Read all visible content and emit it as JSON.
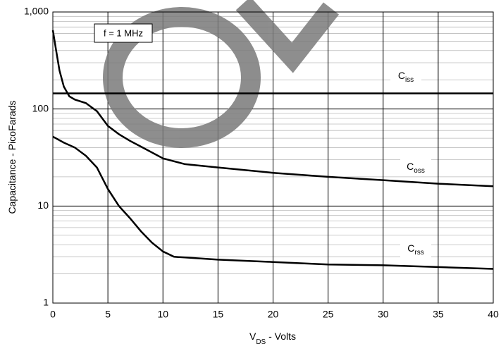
{
  "chart_data": {
    "type": "line",
    "x_label": "VDS - Volts",
    "y_label": "Capacitance - PicoFarads",
    "annotation": "f = 1 MHz",
    "xlim": [
      0,
      40
    ],
    "xticks": [
      0,
      5,
      10,
      15,
      20,
      25,
      30,
      35,
      40
    ],
    "ylim": [
      1,
      1000
    ],
    "yticks": [
      1,
      10,
      100,
      {
        "value": 1000,
        "label": "1,000"
      }
    ],
    "log_y": true,
    "grid": true,
    "minor_grid": true,
    "series": [
      {
        "name": "Ciss",
        "color": "#000000",
        "x": [
          0,
          40
        ],
        "values": [
          145,
          145
        ]
      },
      {
        "name": "Coss",
        "color": "#000000",
        "x": [
          0,
          0.3,
          0.6,
          1,
          1.5,
          2,
          3,
          4,
          5,
          6,
          7,
          8,
          10,
          12,
          15,
          20,
          25,
          30,
          35,
          40
        ],
        "values": [
          650,
          400,
          250,
          170,
          135,
          125,
          115,
          95,
          67,
          55,
          47,
          41,
          31,
          27,
          25,
          22,
          20,
          18.5,
          17,
          16
        ]
      },
      {
        "name": "Crss",
        "color": "#000000",
        "x": [
          0,
          1,
          2,
          3,
          4,
          5,
          6,
          7,
          8,
          9,
          10,
          11,
          12,
          15,
          20,
          25,
          30,
          35,
          40
        ],
        "values": [
          52,
          45,
          40,
          33,
          25,
          15,
          10,
          7.5,
          5.5,
          4.2,
          3.4,
          3.0,
          2.95,
          2.8,
          2.65,
          2.5,
          2.45,
          2.35,
          2.25
        ]
      }
    ]
  }
}
